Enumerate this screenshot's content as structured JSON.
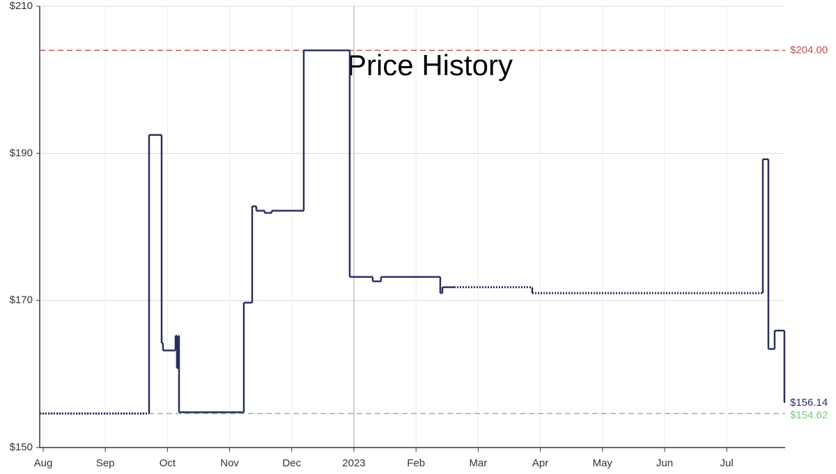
{
  "chart_data": {
    "type": "step",
    "title": "Price History",
    "x": [
      -0.056,
      1.704,
      1.906,
      1.928,
      2.13,
      2.152,
      2.175,
      2.186,
      3.229,
      3.363,
      3.43,
      3.565,
      3.677,
      4.193,
      4.933,
      5.303,
      5.437,
      6.39,
      6.424,
      6.614,
      7.87,
      11.581,
      11.67,
      11.771,
      11.928
    ],
    "series": [
      {
        "color": "#2b2f5e",
        "dash": "solid",
        "values": [
          null,
          192.5,
          164.2,
          163.2,
          165.2,
          160.8,
          165.2,
          154.8,
          169.7,
          182.8,
          182.2,
          181.9,
          182.2,
          204,
          173.2,
          172.6,
          173.2,
          171,
          171.8,
          null,
          null,
          189.2,
          163.4,
          165.9,
          156.14
        ]
      },
      {
        "color": "#2b2f5e",
        "dash": "dotted",
        "values": [
          154.62,
          null,
          null,
          null,
          null,
          null,
          null,
          null,
          null,
          null,
          null,
          null,
          null,
          null,
          null,
          null,
          null,
          null,
          null,
          171.8,
          171,
          null,
          null,
          null,
          null
        ]
      }
    ],
    "reference_lines": [
      {
        "value": 204,
        "label": "$204.00",
        "color": "#c0504d"
      },
      {
        "value": 154.62,
        "label": "$154.62",
        "color": "#7cc47c"
      }
    ],
    "current": {
      "value": 156.14,
      "label": "$156.14",
      "color": "#2b2f5e"
    },
    "xlim": [
      -0.056,
      11.94
    ],
    "xticks": [
      {
        "value": 0,
        "label": "Aug"
      },
      {
        "value": 1,
        "label": "Sep"
      },
      {
        "value": 2,
        "label": "Oct"
      },
      {
        "value": 3,
        "label": "Nov"
      },
      {
        "value": 4,
        "label": "Dec"
      },
      {
        "value": 5,
        "label": "2023"
      },
      {
        "value": 6,
        "label": "Feb"
      },
      {
        "value": 7,
        "label": "Mar"
      },
      {
        "value": 8,
        "label": "Apr"
      },
      {
        "value": 9,
        "label": "May"
      },
      {
        "value": 10,
        "label": "Jun"
      },
      {
        "value": 11,
        "label": "Jul"
      }
    ],
    "ylim": [
      150,
      210
    ],
    "yticks": [
      {
        "value": 150,
        "label": "$150"
      },
      {
        "value": 170,
        "label": "$170"
      },
      {
        "value": 190,
        "label": "$190"
      },
      {
        "value": 210,
        "label": "$210"
      }
    ],
    "grid": true
  }
}
